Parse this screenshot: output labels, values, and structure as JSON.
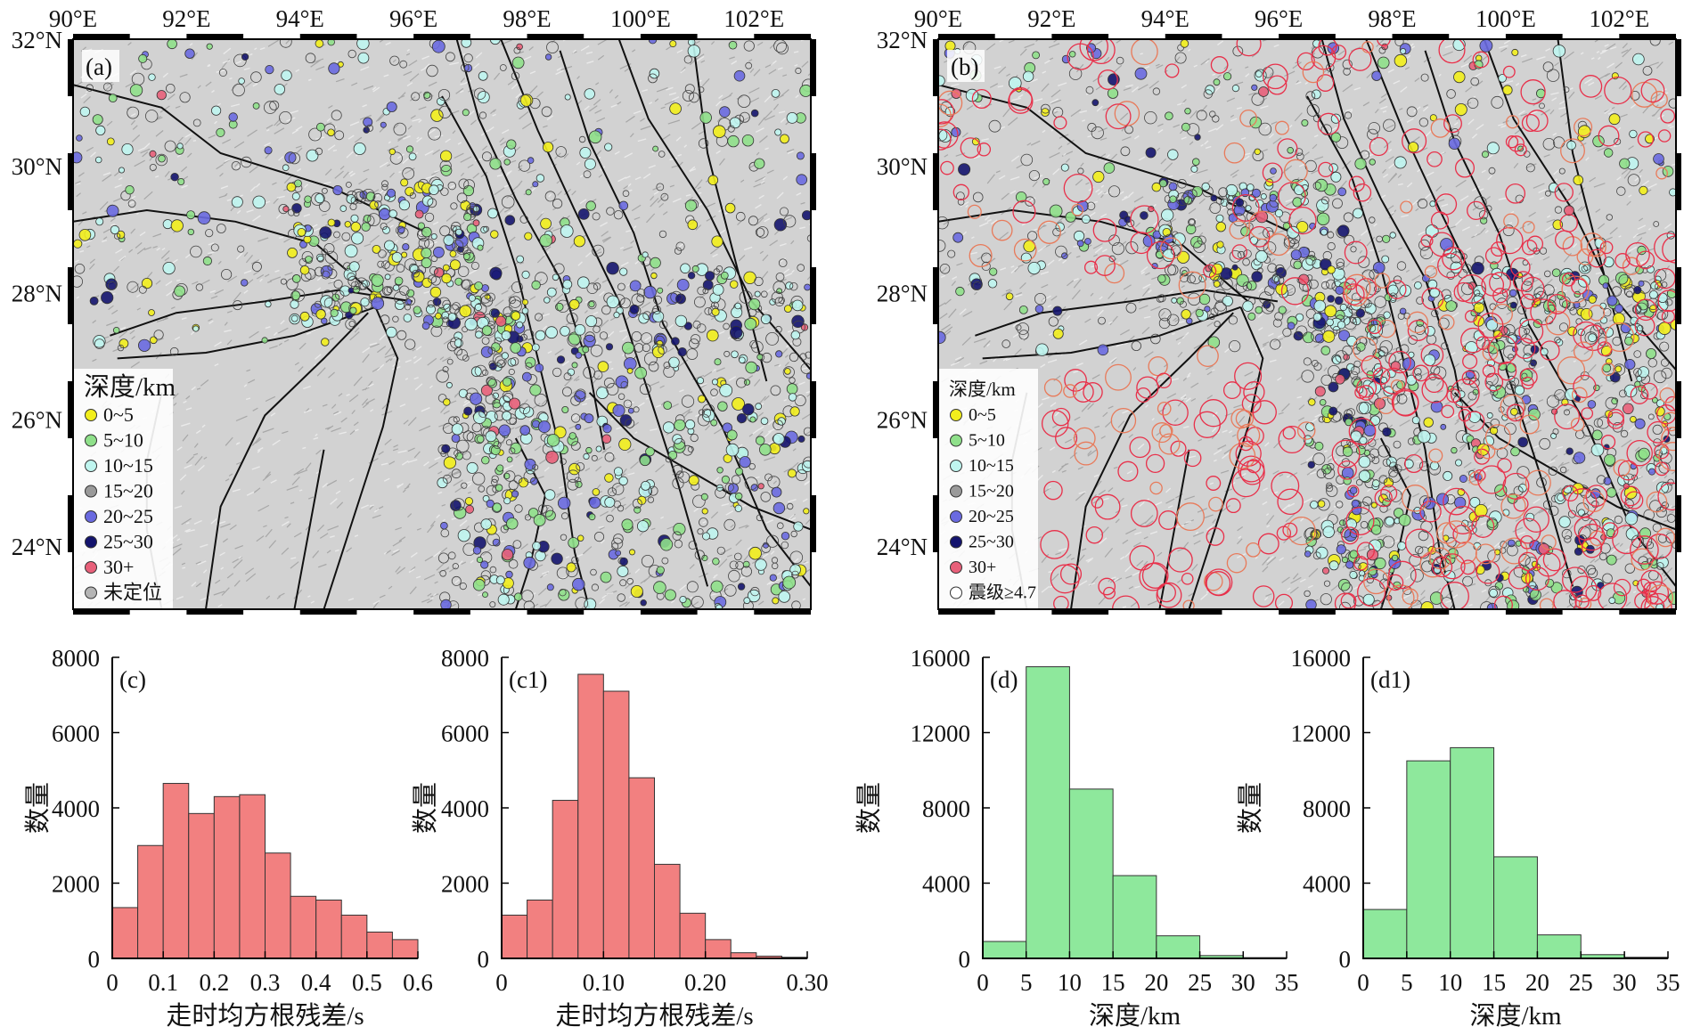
{
  "maps": [
    {
      "id": "a",
      "panel_label": "(a)",
      "lon_labels": [
        "90°E",
        "92°E",
        "94°E",
        "96°E",
        "98°E",
        "100°E",
        "102°E"
      ],
      "lat_labels": [
        "32°N",
        "30°N",
        "28°N",
        "26°N",
        "24°N"
      ],
      "legend_title": "深度/km",
      "legend_items": [
        {
          "label": "0~5",
          "color": "#f2ee1c"
        },
        {
          "label": "5~10",
          "color": "#8fe08a"
        },
        {
          "label": "10~15",
          "color": "#bff5ef"
        },
        {
          "label": "15~20",
          "color": "#9a9a9a"
        },
        {
          "label": "20~25",
          "color": "#6a6ae0"
        },
        {
          "label": "25~30",
          "color": "#14146e"
        },
        {
          "label": "30+",
          "color": "#e8607a"
        },
        {
          "label": "未定位",
          "color": "#b4b4b4"
        }
      ]
    },
    {
      "id": "b",
      "panel_label": "(b)",
      "lon_labels": [
        "90°E",
        "92°E",
        "94°E",
        "96°E",
        "98°E",
        "100°E",
        "102°E"
      ],
      "lat_labels": [
        "32°N",
        "30°N",
        "28°N",
        "26°N",
        "24°N"
      ],
      "legend_title": "深度/km",
      "legend_items": [
        {
          "label": "0~5",
          "color": "#f2ee1c"
        },
        {
          "label": "5~10",
          "color": "#8fe08a"
        },
        {
          "label": "10~15",
          "color": "#bff5ef"
        },
        {
          "label": "15~20",
          "color": "#9a9a9a"
        },
        {
          "label": "20~25",
          "color": "#6a6ae0"
        },
        {
          "label": "25~30",
          "color": "#14146e"
        },
        {
          "label": "30+",
          "color": "#e8607a"
        },
        {
          "label": "震级≥4.7",
          "color": "none"
        }
      ]
    }
  ],
  "chart_data": [
    {
      "id": "c",
      "type": "bar",
      "panel_label": "(c)",
      "bar_color": "#f28080",
      "xlabel": "走时均方根残差/s",
      "ylabel": "数量",
      "xlim": [
        0,
        0.6
      ],
      "ylim": [
        0,
        8000
      ],
      "x_ticks": [
        "0",
        "0.1",
        "0.2",
        "0.3",
        "0.4",
        "0.5",
        "0.6"
      ],
      "y_ticks": [
        "0",
        "2000",
        "4000",
        "6000",
        "8000"
      ],
      "bin_width": 0.05,
      "bins_start": [
        0,
        0.05,
        0.1,
        0.15,
        0.2,
        0.25,
        0.3,
        0.35,
        0.4,
        0.45,
        0.5,
        0.55
      ],
      "values": [
        1350,
        3000,
        4650,
        3850,
        4300,
        4350,
        2800,
        1650,
        1550,
        1150,
        700,
        500
      ]
    },
    {
      "id": "c1",
      "type": "bar",
      "panel_label": "(c1)",
      "bar_color": "#f28080",
      "xlabel": "走时均方根残差/s",
      "ylabel": "数量",
      "xlim": [
        0,
        0.3
      ],
      "ylim": [
        0,
        8000
      ],
      "x_ticks": [
        "0",
        "0.10",
        "0.20",
        "0.30"
      ],
      "y_ticks": [
        "0",
        "2000",
        "4000",
        "6000",
        "8000"
      ],
      "bin_width": 0.025,
      "bins_start": [
        0,
        0.025,
        0.05,
        0.075,
        0.1,
        0.125,
        0.15,
        0.175,
        0.2,
        0.225,
        0.25,
        0.275
      ],
      "values": [
        1150,
        1550,
        4200,
        7550,
        7100,
        4800,
        2500,
        1200,
        500,
        150,
        60,
        30
      ]
    },
    {
      "id": "d",
      "type": "bar",
      "panel_label": "(d)",
      "bar_color": "#8ee89c",
      "xlabel": "深度/km",
      "ylabel": "数量",
      "xlim": [
        0,
        35
      ],
      "ylim": [
        0,
        16000
      ],
      "x_ticks": [
        "0",
        "5",
        "10",
        "15",
        "20",
        "25",
        "30",
        "35"
      ],
      "y_ticks": [
        "0",
        "4000",
        "8000",
        "12000",
        "16000"
      ],
      "bin_width": 5,
      "bins_start": [
        0,
        5,
        10,
        15,
        20,
        25,
        30
      ],
      "values": [
        900,
        15500,
        9000,
        4400,
        1200,
        150,
        40
      ]
    },
    {
      "id": "d1",
      "type": "bar",
      "panel_label": "(d1)",
      "bar_color": "#8ee89c",
      "xlabel": "深度/km",
      "ylabel": "数量",
      "xlim": [
        0,
        35
      ],
      "ylim": [
        0,
        16000
      ],
      "x_ticks": [
        "0",
        "5",
        "10",
        "15",
        "20",
        "25",
        "30",
        "35"
      ],
      "y_ticks": [
        "0",
        "4000",
        "8000",
        "12000",
        "16000"
      ],
      "bin_width": 5,
      "bins_start": [
        0,
        5,
        10,
        15,
        20,
        25,
        30
      ],
      "values": [
        2600,
        10500,
        11200,
        5400,
        1250,
        200,
        60
      ]
    }
  ]
}
